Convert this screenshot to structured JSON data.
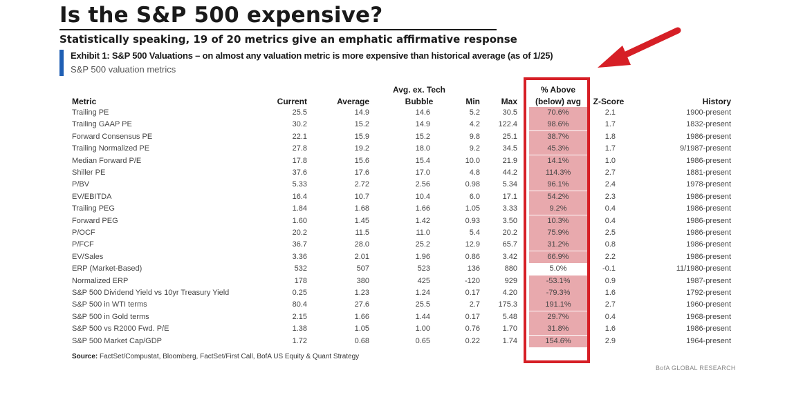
{
  "title": "Is the S&P 500 expensive?",
  "subtitle": "Statistically speaking, 19 of 20 metrics give an emphatic affirmative response",
  "exhibit": {
    "title": "Exhibit 1: S&P 500 Valuations – on almost any valuation metric is more expensive than historical average (as of 1/25)",
    "subtitle": "S&P 500 valuation metrics"
  },
  "columns": {
    "metric": "Metric",
    "current": "Current",
    "average": "Average",
    "tech_line1": "Avg. ex. Tech",
    "tech_line2": "Bubble",
    "min": "Min",
    "max": "Max",
    "pct_line1": "% Above",
    "pct_line2": "(below) avg",
    "z": "Z-Score",
    "history": "History"
  },
  "rows": [
    {
      "metric": "Trailing PE",
      "current": "25.5",
      "average": "14.9",
      "tech": "14.6",
      "min": "5.2",
      "max": "30.5",
      "pct": "70.6%",
      "z": "2.1",
      "history": "1900-present",
      "highlight": true
    },
    {
      "metric": "Trailing GAAP PE",
      "current": "30.2",
      "average": "15.2",
      "tech": "14.9",
      "min": "4.2",
      "max": "122.4",
      "pct": "98.6%",
      "z": "1.7",
      "history": "1832-present",
      "highlight": true
    },
    {
      "metric": "Forward Consensus PE",
      "current": "22.1",
      "average": "15.9",
      "tech": "15.2",
      "min": "9.8",
      "max": "25.1",
      "pct": "38.7%",
      "z": "1.8",
      "history": "1986-present",
      "highlight": true
    },
    {
      "metric": "Trailing Normalized PE",
      "current": "27.8",
      "average": "19.2",
      "tech": "18.0",
      "min": "9.2",
      "max": "34.5",
      "pct": "45.3%",
      "z": "1.7",
      "history": "9/1987-present",
      "highlight": true
    },
    {
      "metric": "Median Forward P/E",
      "current": "17.8",
      "average": "15.6",
      "tech": "15.4",
      "min": "10.0",
      "max": "21.9",
      "pct": "14.1%",
      "z": "1.0",
      "history": "1986-present",
      "highlight": true
    },
    {
      "metric": "Shiller PE",
      "current": "37.6",
      "average": "17.6",
      "tech": "17.0",
      "min": "4.8",
      "max": "44.2",
      "pct": "114.3%",
      "z": "2.7",
      "history": "1881-present",
      "highlight": true
    },
    {
      "metric": "P/BV",
      "current": "5.33",
      "average": "2.72",
      "tech": "2.56",
      "min": "0.98",
      "max": "5.34",
      "pct": "96.1%",
      "z": "2.4",
      "history": "1978-present",
      "highlight": true
    },
    {
      "metric": "EV/EBITDA",
      "current": "16.4",
      "average": "10.7",
      "tech": "10.4",
      "min": "6.0",
      "max": "17.1",
      "pct": "54.2%",
      "z": "2.3",
      "history": "1986-present",
      "highlight": true
    },
    {
      "metric": "Trailing PEG",
      "current": "1.84",
      "average": "1.68",
      "tech": "1.66",
      "min": "1.05",
      "max": "3.33",
      "pct": "9.2%",
      "z": "0.4",
      "history": "1986-present",
      "highlight": true
    },
    {
      "metric": "Forward PEG",
      "current": "1.60",
      "average": "1.45",
      "tech": "1.42",
      "min": "0.93",
      "max": "3.50",
      "pct": "10.3%",
      "z": "0.4",
      "history": "1986-present",
      "highlight": true
    },
    {
      "metric": "P/OCF",
      "current": "20.2",
      "average": "11.5",
      "tech": "11.0",
      "min": "5.4",
      "max": "20.2",
      "pct": "75.9%",
      "z": "2.5",
      "history": "1986-present",
      "highlight": true
    },
    {
      "metric": "P/FCF",
      "current": "36.7",
      "average": "28.0",
      "tech": "25.2",
      "min": "12.9",
      "max": "65.7",
      "pct": "31.2%",
      "z": "0.8",
      "history": "1986-present",
      "highlight": true
    },
    {
      "metric": "EV/Sales",
      "current": "3.36",
      "average": "2.01",
      "tech": "1.96",
      "min": "0.86",
      "max": "3.42",
      "pct": "66.9%",
      "z": "2.2",
      "history": "1986-present",
      "highlight": true
    },
    {
      "metric": "ERP (Market-Based)",
      "current": "532",
      "average": "507",
      "tech": "523",
      "min": "136",
      "max": "880",
      "pct": "5.0%",
      "z": "-0.1",
      "history": "11/1980-present",
      "highlight": false
    },
    {
      "metric": "Normalized ERP",
      "current": "178",
      "average": "380",
      "tech": "425",
      "min": "-120",
      "max": "929",
      "pct": "-53.1%",
      "z": "0.9",
      "history": "1987-present",
      "highlight": true
    },
    {
      "metric": "S&P 500 Dividend Yield vs 10yr Treasury Yield",
      "current": "0.25",
      "average": "1.23",
      "tech": "1.24",
      "min": "0.17",
      "max": "4.20",
      "pct": "-79.3%",
      "z": "1.6",
      "history": "1792-present",
      "highlight": true
    },
    {
      "metric": "S&P 500 in WTI terms",
      "current": "80.4",
      "average": "27.6",
      "tech": "25.5",
      "min": "2.7",
      "max": "175.3",
      "pct": "191.1%",
      "z": "2.7",
      "history": "1960-present",
      "highlight": true
    },
    {
      "metric": "S&P 500 in Gold terms",
      "current": "2.15",
      "average": "1.66",
      "tech": "1.44",
      "min": "0.17",
      "max": "5.48",
      "pct": "29.7%",
      "z": "0.4",
      "history": "1968-present",
      "highlight": true
    },
    {
      "metric": "S&P 500 vs R2000 Fwd. P/E",
      "current": "1.38",
      "average": "1.05",
      "tech": "1.00",
      "min": "0.76",
      "max": "1.70",
      "pct": "31.8%",
      "z": "1.6",
      "history": "1986-present",
      "highlight": true
    },
    {
      "metric": "S&P 500 Market Cap/GDP",
      "current": "1.72",
      "average": "0.68",
      "tech": "0.65",
      "min": "0.22",
      "max": "1.74",
      "pct": "154.6%",
      "z": "2.9",
      "history": "1964-present",
      "highlight": true
    }
  ],
  "source_label": "Source:",
  "source_text": "FactSet/Compustat, Bloomberg, FactSet/First Call, BofA US Equity & Quant Strategy",
  "brand": "BofA GLOBAL RESEARCH",
  "colors": {
    "highlight_fill": "#e8a9ad",
    "highlight_border": "#d61f26",
    "arrow": "#d61f26",
    "exhibit_bar": "#1f5fb4"
  }
}
